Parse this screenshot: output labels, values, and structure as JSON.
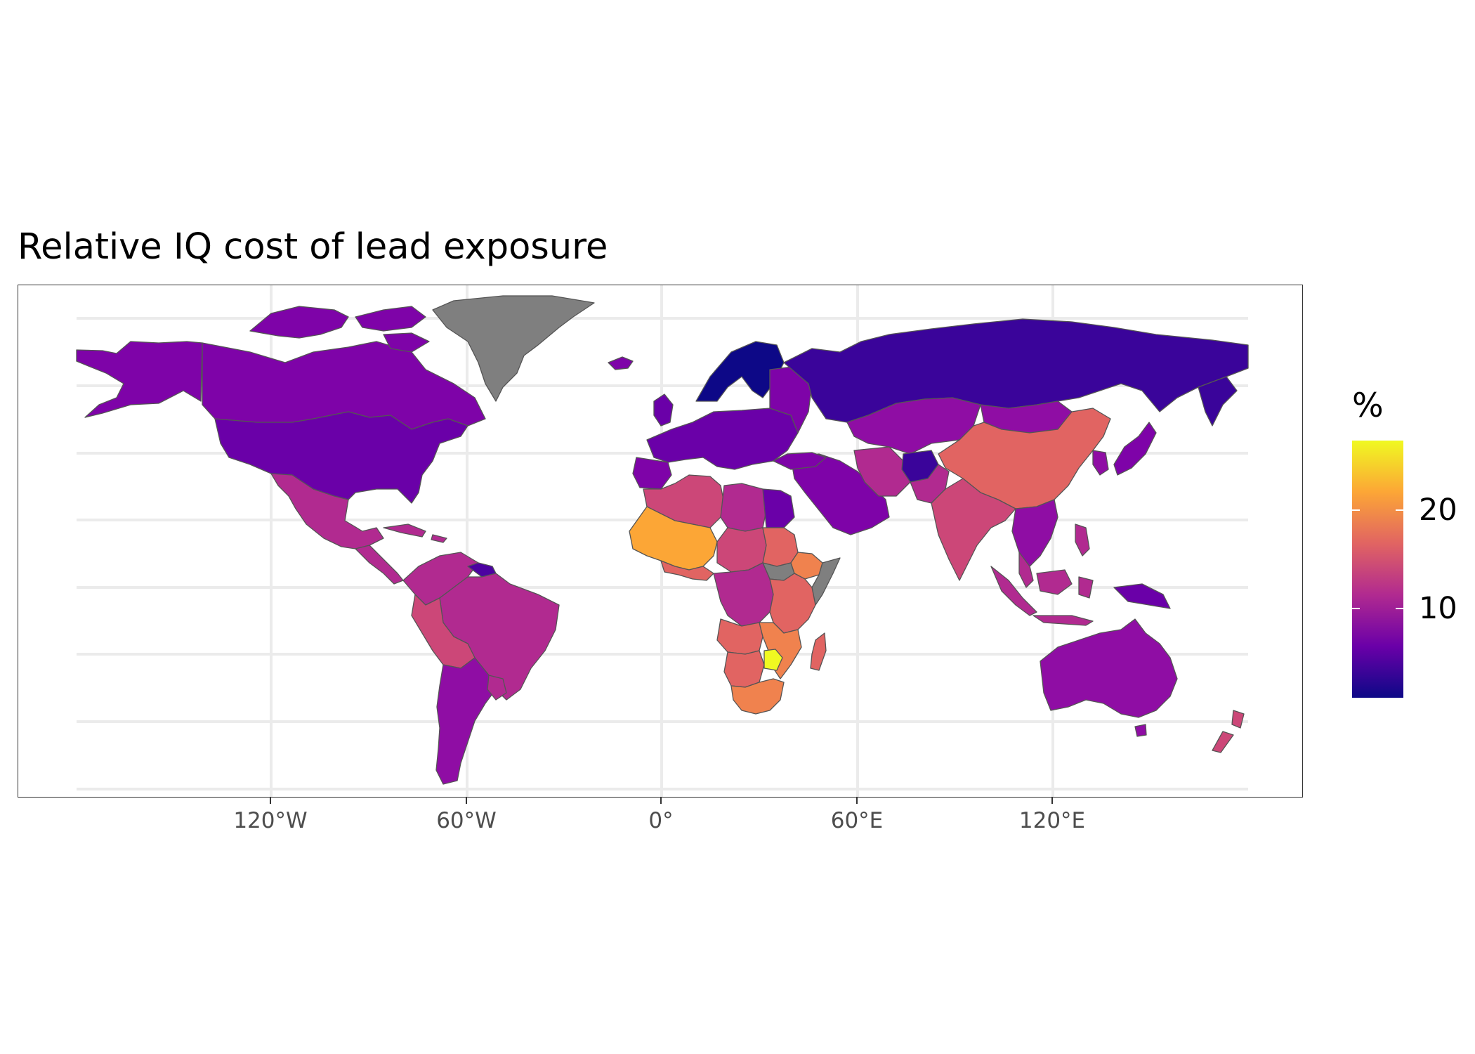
{
  "title": "Relative IQ cost of lead exposure",
  "map_data": {
    "type": "choropleth",
    "projection": "equirectangular",
    "x_axis": {
      "tick_labels": [
        "120°W",
        "60°W",
        "0°",
        "60°E",
        "120°E"
      ],
      "tick_values": [
        -120,
        -60,
        0,
        60,
        120
      ]
    },
    "legend": {
      "title": "%",
      "ticks": [
        {
          "label": "20",
          "value": 20
        },
        {
          "label": "10",
          "value": 10
        }
      ],
      "range": [
        1,
        27
      ],
      "colorscale": [
        "#0d0887",
        "#6a00a8",
        "#b12a90",
        "#e16462",
        "#fca636",
        "#f0f921"
      ]
    },
    "colors": {
      "no_data": "#7f7f7f",
      "border": "#555555",
      "graticule": "#ebebeb",
      "panel_border": "#333333"
    },
    "regions": [
      {
        "name": "Russia",
        "level": "very low"
      },
      {
        "name": "Scandinavia",
        "level": "very low"
      },
      {
        "name": "Afghanistan",
        "level": "very low"
      },
      {
        "name": "Canada",
        "level": "low"
      },
      {
        "name": "United States",
        "level": "low"
      },
      {
        "name": "Europe",
        "level": "low"
      },
      {
        "name": "Australia",
        "level": "low"
      },
      {
        "name": "Argentina",
        "level": "low"
      },
      {
        "name": "Mexico",
        "level": "medium"
      },
      {
        "name": "Brazil",
        "level": "medium"
      },
      {
        "name": "India",
        "level": "medium"
      },
      {
        "name": "China",
        "level": "high"
      },
      {
        "name": "West Africa",
        "level": "high"
      },
      {
        "name": "South Africa",
        "level": "high"
      },
      {
        "name": "Zimbabwe",
        "level": "very high"
      },
      {
        "name": "Greenland",
        "level": "no data"
      },
      {
        "name": "South Sudan",
        "level": "no data"
      }
    ]
  }
}
